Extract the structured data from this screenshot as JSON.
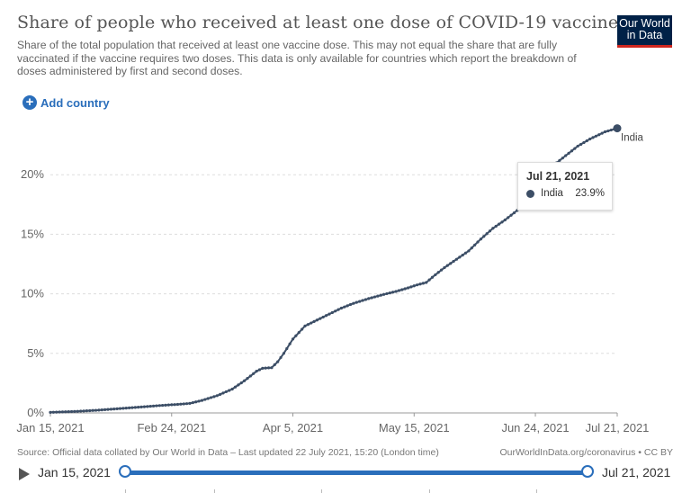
{
  "header": {
    "title": "Share of people who received at least one dose of COVID-19 vaccine",
    "subtitle": "Share of the total population that received at least one vaccine dose. This may not equal the share that are fully vaccinated if the vaccine requires two doses. This data is only available for countries which report the breakdown of doses administered by first and second doses.",
    "logo_line1": "Our World",
    "logo_line2": "in Data"
  },
  "controls": {
    "add_country_label": "Add country",
    "add_icon": "plus-circle-icon"
  },
  "colors": {
    "series": "#3c4e66",
    "accent": "#2a6ebb",
    "grid": "#dddddd",
    "logo_bg": "#002147",
    "logo_accent": "#ce261e"
  },
  "chart_data": {
    "type": "line",
    "title": "Share of people who received at least one dose of COVID-19 vaccine",
    "ylabel": "",
    "ylim": [
      0,
      25
    ],
    "y_ticks": [
      0,
      5,
      10,
      15,
      20
    ],
    "y_tick_labels": [
      "0%",
      "5%",
      "10%",
      "15%",
      "20%"
    ],
    "x_tick_labels": [
      "Jan 15, 2021",
      "Feb 24, 2021",
      "Apr 5, 2021",
      "May 15, 2021",
      "Jun 24, 2021",
      "Jul 21, 2021"
    ],
    "x_tick_days": [
      0,
      40,
      80,
      120,
      160,
      187
    ],
    "x_range_days": [
      0,
      187
    ],
    "grid": true,
    "series": [
      {
        "name": "India",
        "x_days": [
          0,
          8,
          15,
          22,
          30,
          36,
          42,
          46,
          50,
          55,
          60,
          64,
          68,
          70,
          73,
          75,
          77,
          80,
          84,
          88,
          92,
          96,
          100,
          105,
          110,
          114,
          118,
          121,
          124,
          127,
          130,
          134,
          138,
          142,
          146,
          150,
          154,
          157,
          160,
          163,
          166,
          170,
          174,
          178,
          183,
          187
        ],
        "values": [
          0.05,
          0.12,
          0.22,
          0.35,
          0.5,
          0.62,
          0.72,
          0.8,
          1.05,
          1.45,
          2.0,
          2.7,
          3.5,
          3.75,
          3.8,
          4.3,
          5.0,
          6.2,
          7.3,
          7.8,
          8.3,
          8.8,
          9.2,
          9.6,
          9.95,
          10.2,
          10.5,
          10.75,
          10.95,
          11.6,
          12.2,
          12.9,
          13.6,
          14.6,
          15.5,
          16.2,
          17.0,
          18.0,
          19.0,
          20.0,
          20.8,
          21.6,
          22.4,
          23.0,
          23.6,
          23.9
        ]
      }
    ],
    "end_label": "India",
    "tooltip": {
      "date": "Jul 21, 2021",
      "series": "India",
      "value": "23.9%"
    }
  },
  "footer": {
    "source": "Source: Official data collated by Our World in Data – Last updated 22 July 2021, 15:20 (London time)",
    "credit": "OurWorldInData.org/coronavirus • CC BY"
  },
  "timeline": {
    "start_label": "Jan 15, 2021",
    "end_label": "Jul 21, 2021",
    "play_icon": "play-icon"
  }
}
